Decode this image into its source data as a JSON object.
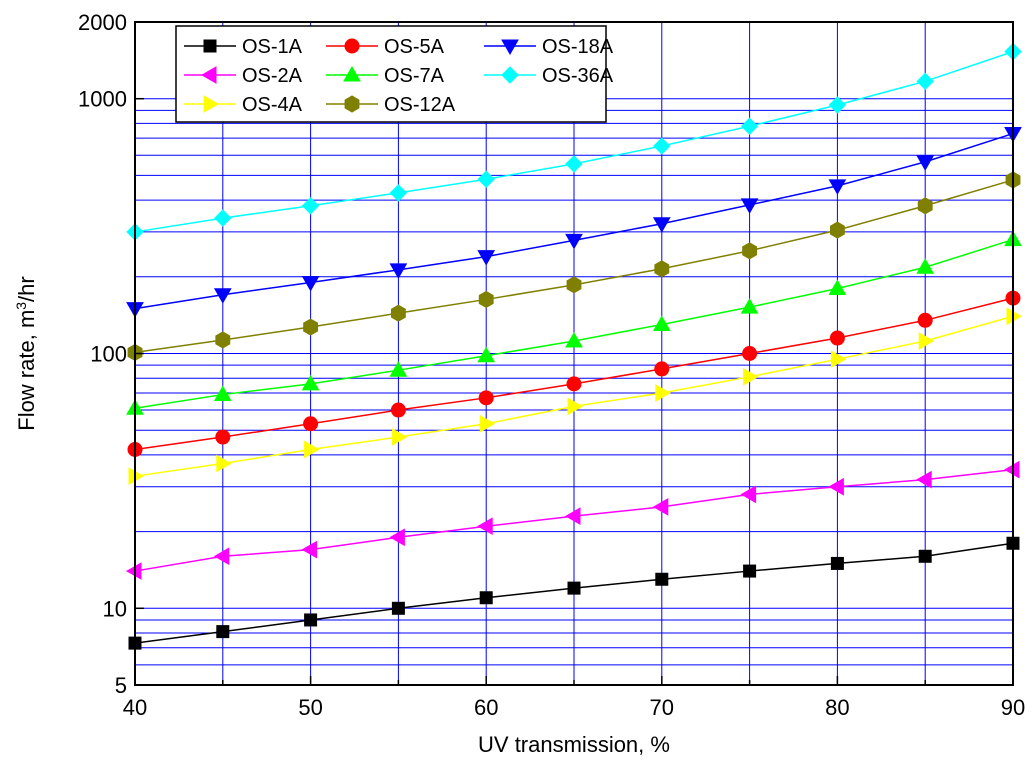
{
  "chart_data": {
    "type": "line",
    "xlabel": "UV transmission, %",
    "ylabel": "Flow rate, m",
    "ylabel_sup": "3",
    "ylabel_suffix": "/hr",
    "xlim": [
      40,
      90
    ],
    "ylim": [
      5,
      2000
    ],
    "yscale": "log",
    "grid": true,
    "legend_position": "top-left",
    "x": [
      40,
      45,
      50,
      55,
      60,
      65,
      70,
      75,
      80,
      85,
      90
    ],
    "x_ticks": [
      "40",
      "50",
      "60",
      "70",
      "80",
      "90"
    ],
    "y_ticks": [
      {
        "value": 5,
        "label": "5"
      },
      {
        "value": 10,
        "label": "10"
      },
      {
        "value": 100,
        "label": "100"
      },
      {
        "value": 1000,
        "label": "1000"
      },
      {
        "value": 2000,
        "label": "2000"
      }
    ],
    "series": [
      {
        "name": "OS-1A",
        "color": "#000000",
        "marker": "square",
        "values": [
          7.3,
          8.1,
          9,
          10,
          11,
          12,
          13,
          14,
          15,
          16,
          18
        ]
      },
      {
        "name": "OS-2A",
        "color": "#ff00ff",
        "marker": "triangle-left",
        "values": [
          14,
          16,
          17,
          19,
          21,
          23,
          25,
          28,
          30,
          32,
          35
        ]
      },
      {
        "name": "OS-4A",
        "color": "#ffff00",
        "marker": "triangle-right",
        "values": [
          33,
          37,
          42,
          47,
          53,
          62,
          70,
          81,
          95,
          112,
          140
        ]
      },
      {
        "name": "OS-5A",
        "color": "#ff0000",
        "marker": "circle",
        "values": [
          42,
          47,
          53,
          60,
          67,
          76,
          87,
          100,
          115,
          135,
          165
        ]
      },
      {
        "name": "OS-7A",
        "color": "#00ff00",
        "marker": "triangle-up",
        "values": [
          61,
          69,
          76,
          86,
          98,
          112,
          130,
          152,
          180,
          218,
          280
        ]
      },
      {
        "name": "OS-12A",
        "color": "#808000",
        "marker": "hexagon",
        "values": [
          101,
          113,
          127,
          144,
          163,
          186,
          215,
          253,
          305,
          380,
          480
        ]
      },
      {
        "name": "OS-18A",
        "color": "#0000ff",
        "marker": "triangle-down",
        "values": [
          150,
          170,
          190,
          213,
          240,
          278,
          323,
          383,
          455,
          565,
          730
        ]
      },
      {
        "name": "OS-36A",
        "color": "#00ffff",
        "marker": "diamond",
        "values": [
          300,
          340,
          380,
          427,
          483,
          555,
          652,
          780,
          945,
          1170,
          1530
        ]
      }
    ]
  }
}
